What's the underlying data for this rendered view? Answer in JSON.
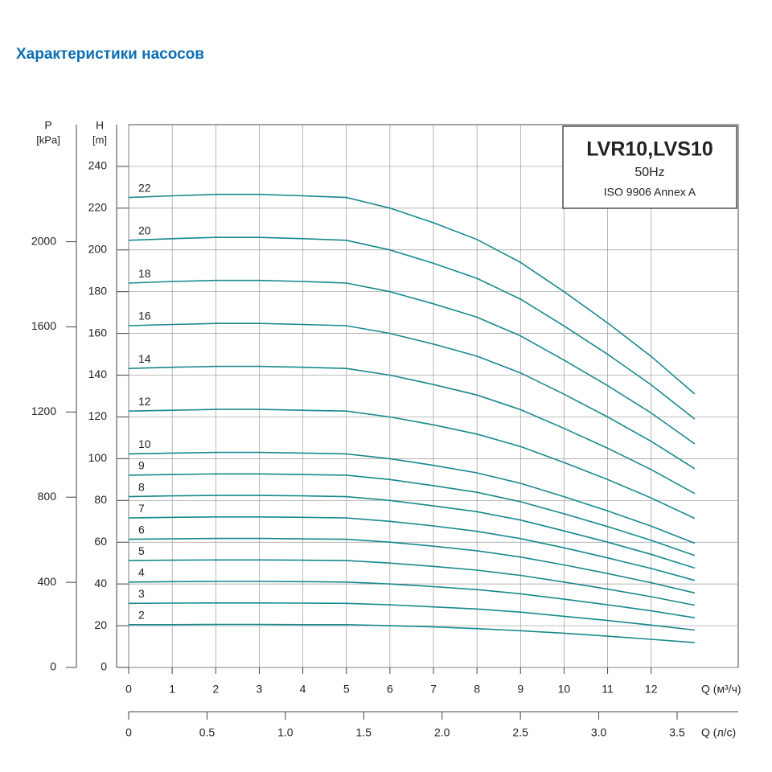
{
  "chart_data": {
    "type": "line",
    "title": "Характеристики насосов",
    "annotations": [
      "LVR10,LVS10",
      "50Hz",
      "ISO 9906 Annex A"
    ],
    "ylabel": "H",
    "yunit": "[m]",
    "y2label": "P",
    "y2unit": "[kPa]",
    "xlabel": "Q (м³/ч)",
    "x2label": "Q (л/с)",
    "x": [
      0,
      1,
      2,
      3,
      4,
      5,
      6,
      7,
      8,
      9,
      10,
      11,
      12,
      13
    ],
    "xlim": [
      0,
      14
    ],
    "xticks": [
      0,
      1,
      2,
      3,
      4,
      5,
      6,
      7,
      8,
      9,
      10,
      11,
      12
    ],
    "x2lim": [
      0,
      3.89
    ],
    "x2ticks": [
      0,
      0.5,
      {
        "value": 1,
        "label": "1.0"
      },
      1.5,
      {
        "value": 2,
        "label": "2.0"
      },
      2.5,
      {
        "value": 3,
        "label": "3.0"
      },
      3.5
    ],
    "ylim": [
      0,
      260
    ],
    "yticks": [
      0,
      20,
      40,
      60,
      80,
      100,
      120,
      140,
      160,
      180,
      200,
      220,
      240
    ],
    "y2lim": [
      0,
      2550
    ],
    "y2ticks": [
      0,
      400,
      800,
      1200,
      1600,
      2000
    ],
    "grid": true,
    "series": [
      {
        "name": "2",
        "color": "#17898c",
        "values": [
          20.5,
          20.5,
          20.6,
          20.6,
          20.5,
          20.5,
          20,
          19.4,
          18.6,
          17.6,
          16.4,
          15,
          13.5,
          11.9
        ]
      },
      {
        "name": "3",
        "color": "#17898c",
        "values": [
          30.7,
          30.8,
          30.9,
          30.9,
          30.8,
          30.7,
          30,
          29,
          28,
          26.5,
          24.5,
          22.5,
          20.3,
          17.9
        ]
      },
      {
        "name": "4",
        "color": "#17898c",
        "values": [
          40.9,
          41.1,
          41.2,
          41.2,
          41.1,
          40.9,
          40,
          38.7,
          37.3,
          35.3,
          32.7,
          30,
          27.1,
          23.8
        ]
      },
      {
        "name": "5",
        "color": "#17898c",
        "values": [
          51.2,
          51.4,
          51.5,
          51.5,
          51.4,
          51.2,
          50,
          48.4,
          46.6,
          44.1,
          40.9,
          37.5,
          33.9,
          29.8
        ]
      },
      {
        "name": "6",
        "color": "#17898c",
        "values": [
          61.4,
          61.6,
          61.8,
          61.8,
          61.6,
          61.4,
          60,
          58.1,
          55.9,
          52.9,
          49.1,
          45,
          40.6,
          35.7
        ]
      },
      {
        "name": "7",
        "color": "#17898c",
        "values": [
          71.6,
          71.9,
          72.1,
          72.1,
          71.9,
          71.6,
          70,
          67.8,
          65.2,
          61.7,
          57.3,
          52.5,
          47.4,
          41.7
        ]
      },
      {
        "name": "8",
        "color": "#17898c",
        "values": [
          81.8,
          82.2,
          82.4,
          82.4,
          82.2,
          81.8,
          80,
          77.4,
          74.6,
          70.6,
          65.4,
          60,
          54.2,
          47.6
        ]
      },
      {
        "name": "9",
        "color": "#17898c",
        "values": [
          92.1,
          92.4,
          92.7,
          92.7,
          92.4,
          92.1,
          90,
          87.1,
          83.9,
          79.4,
          73.6,
          67.5,
          60.9,
          53.6
        ]
      },
      {
        "name": "10",
        "color": "#17898c",
        "values": [
          102.3,
          102.7,
          103,
          103,
          102.7,
          102.3,
          100,
          96.8,
          93.2,
          88.2,
          81.8,
          75,
          67.7,
          59.5
        ]
      },
      {
        "name": "12",
        "color": "#17898c",
        "values": [
          122.8,
          123.2,
          123.6,
          123.6,
          123.2,
          122.8,
          120,
          116.2,
          111.8,
          105.8,
          98.2,
          90,
          81.2,
          71.4
        ]
      },
      {
        "name": "14",
        "color": "#17898c",
        "values": [
          143.2,
          143.8,
          144.2,
          144.2,
          143.8,
          143.2,
          140,
          135.5,
          130.5,
          123.5,
          114.5,
          105,
          94.8,
          83.3
        ]
      },
      {
        "name": "16",
        "color": "#17898c",
        "values": [
          163.7,
          164.3,
          164.8,
          164.8,
          164.3,
          163.7,
          160,
          154.9,
          149.1,
          141.1,
          130.9,
          120,
          108.3,
          95.2
        ]
      },
      {
        "name": "18",
        "color": "#17898c",
        "values": [
          184.1,
          184.9,
          185.4,
          185.4,
          184.9,
          184.1,
          180,
          174.2,
          167.8,
          158.8,
          147.2,
          135,
          121.9,
          107.1
        ]
      },
      {
        "name": "20",
        "color": "#17898c",
        "values": [
          204.6,
          205.4,
          206,
          206,
          205.4,
          204.6,
          200,
          193.6,
          186.4,
          176.4,
          163.6,
          150,
          135.4,
          119
        ]
      },
      {
        "name": "22",
        "color": "#17898c",
        "values": [
          225.1,
          225.9,
          226.6,
          226.6,
          225.9,
          225.1,
          220,
          213,
          205,
          194,
          180,
          165,
          149,
          131
        ]
      }
    ]
  }
}
